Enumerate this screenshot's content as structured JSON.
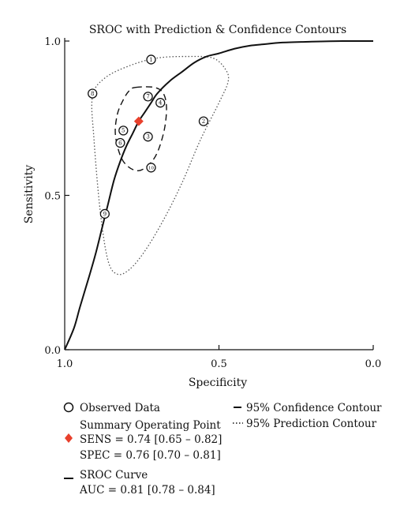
{
  "chart_data": {
    "type": "scatter",
    "title": "SROC with Prediction & Confidence Contours",
    "xlabel": "Specificity",
    "ylabel": "Sensitivity",
    "xlim": [
      1.0,
      0.0
    ],
    "ylim": [
      0.0,
      1.0
    ],
    "x_reversed": true,
    "xticks": [
      1.0,
      0.5,
      0.0
    ],
    "xtick_labels": [
      "1.0",
      "0.5",
      "0.0"
    ],
    "yticks": [
      0.0,
      0.5,
      1.0
    ],
    "ytick_labels": [
      "0.0",
      "0.5",
      "1.0"
    ],
    "grid": false,
    "colors": {
      "summary_point": "#e8402c",
      "ink": "#111111"
    },
    "observed_points": [
      {
        "label": "1",
        "spec": 0.72,
        "sens": 0.94
      },
      {
        "label": "2",
        "spec": 0.55,
        "sens": 0.74
      },
      {
        "label": "3",
        "spec": 0.73,
        "sens": 0.69
      },
      {
        "label": "4",
        "spec": 0.69,
        "sens": 0.8
      },
      {
        "label": "5",
        "spec": 0.81,
        "sens": 0.71
      },
      {
        "label": "6",
        "spec": 0.82,
        "sens": 0.67
      },
      {
        "label": "7",
        "spec": 0.73,
        "sens": 0.82
      },
      {
        "label": "8",
        "spec": 0.91,
        "sens": 0.83
      },
      {
        "label": "9",
        "spec": 0.87,
        "sens": 0.44
      },
      {
        "label": "10",
        "spec": 0.72,
        "sens": 0.59
      }
    ],
    "summary_point": {
      "spec": 0.76,
      "sens": 0.74
    },
    "sroc_curve": {
      "spec": [
        1.0,
        0.97,
        0.95,
        0.92,
        0.9,
        0.88,
        0.86,
        0.84,
        0.82,
        0.8,
        0.78,
        0.76,
        0.74,
        0.72,
        0.7,
        0.66,
        0.62,
        0.58,
        0.54,
        0.5,
        0.45,
        0.4,
        0.35,
        0.3,
        0.2,
        0.1,
        0.0
      ],
      "sens": [
        0.0,
        0.07,
        0.14,
        0.24,
        0.31,
        0.39,
        0.47,
        0.55,
        0.61,
        0.66,
        0.7,
        0.74,
        0.77,
        0.8,
        0.83,
        0.87,
        0.9,
        0.93,
        0.95,
        0.96,
        0.975,
        0.985,
        0.99,
        0.995,
        0.998,
        1.0,
        1.0
      ]
    },
    "confidence_contour": {
      "spec": [
        0.77,
        0.71,
        0.68,
        0.67,
        0.68,
        0.71,
        0.76,
        0.81,
        0.835,
        0.83,
        0.81,
        0.79,
        0.77
      ],
      "sens": [
        0.85,
        0.85,
        0.83,
        0.78,
        0.7,
        0.62,
        0.58,
        0.61,
        0.69,
        0.76,
        0.81,
        0.84,
        0.85
      ],
      "dash": "8,5"
    },
    "prediction_contour": {
      "spec": [
        0.91,
        0.87,
        0.79,
        0.7,
        0.6,
        0.52,
        0.48,
        0.47,
        0.5,
        0.56,
        0.62,
        0.68,
        0.74,
        0.79,
        0.83,
        0.86,
        0.885,
        0.905,
        0.91
      ],
      "sens": [
        0.82,
        0.88,
        0.92,
        0.945,
        0.95,
        0.945,
        0.91,
        0.87,
        0.8,
        0.68,
        0.54,
        0.42,
        0.32,
        0.26,
        0.245,
        0.29,
        0.45,
        0.68,
        0.82
      ],
      "dash": "1.5,2.5"
    },
    "legend": {
      "observed": "Observed Data",
      "summary_title": "Summary Operating Point",
      "summary_sens": "SENS = 0.74 [0.65 – 0.82]",
      "summary_spec": "SPEC = 0.76 [0.70 – 0.81]",
      "sroc_title": "SROC Curve",
      "sroc_auc": "AUC = 0.81 [0.78 – 0.84]",
      "confidence": "95% Confidence Contour",
      "prediction": "95% Prediction Contour"
    }
  }
}
